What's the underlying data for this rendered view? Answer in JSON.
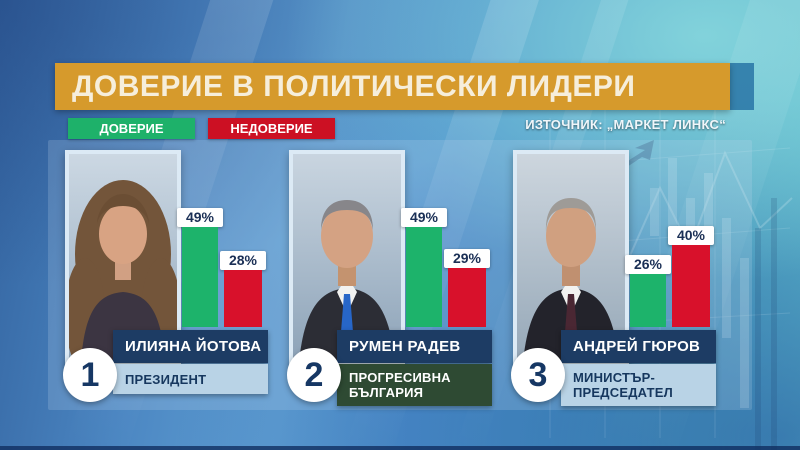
{
  "header": {
    "title": "ДОВЕРИЕ В ПОЛИТИЧЕСКИ ЛИДЕРИ",
    "source": "ИЗТОЧНИК: „МАРКЕТ ЛИНКС“"
  },
  "legend": {
    "trust": "ДОВЕРИЕ",
    "distrust": "НЕДОВЕРИЕ"
  },
  "colors": {
    "title_orange": "#d69a2c",
    "trust_green": "#1db36b",
    "distrust_red": "#d8112b",
    "plate_navy": "#1d3c64",
    "plate_lightblue": "#b9d3e6",
    "plate_darkgreen": "#2e4a33"
  },
  "leaders": [
    {
      "rank": "1",
      "name": "ИЛИЯНА ЙОТОВА",
      "role": "ПРЕЗИДЕНТ",
      "trust_label": "49%",
      "distrust_label": "28%"
    },
    {
      "rank": "2",
      "name": "РУМЕН РАДЕВ",
      "role": "ПРОГРЕСИВНА БЪЛГАРИЯ",
      "trust_label": "49%",
      "distrust_label": "29%"
    },
    {
      "rank": "3",
      "name": "АНДРЕЙ ГЮРОВ",
      "role": "МИНИСТЪР-ПРЕДСЕДАТЕЛ",
      "trust_label": "26%",
      "distrust_label": "40%"
    }
  ],
  "chart_data": {
    "type": "bar",
    "title": "ДОВЕРИЕ В ПОЛИТИЧЕСКИ ЛИДЕРИ",
    "source": "ИЗТОЧНИК: „МАРКЕТ ЛИНКС“",
    "categories": [
      "ИЛИЯНА ЙОТОВА",
      "РУМЕН РАДЕВ",
      "АНДРЕЙ ГЮРОВ"
    ],
    "category_roles": [
      "ПРЕЗИДЕНТ",
      "ПРОГРЕСИВНА БЪЛГАРИЯ",
      "МИНИСТЪР-ПРЕДСЕДАТЕЛ"
    ],
    "series": [
      {
        "name": "ДОВЕРИЕ",
        "color": "#1db36b",
        "values": [
          49,
          49,
          26
        ]
      },
      {
        "name": "НЕДОВЕРИЕ",
        "color": "#d8112b",
        "values": [
          28,
          29,
          40
        ]
      }
    ],
    "unit": "%",
    "ylim": [
      0,
      55
    ],
    "grid": false,
    "legend_position": "top-left"
  }
}
